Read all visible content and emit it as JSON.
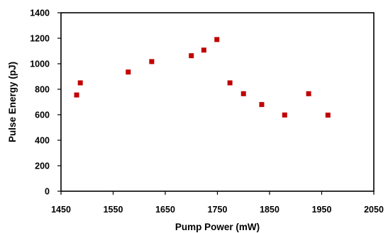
{
  "chart_data": {
    "type": "scatter",
    "title": "",
    "xlabel": "Pump Power (mW)",
    "ylabel": "Pulse Energy (pJ)",
    "xlim": [
      1450,
      2050
    ],
    "ylim": [
      0,
      1400
    ],
    "xticks": [
      1450,
      1550,
      1650,
      1750,
      1850,
      1950,
      2050
    ],
    "yticks": [
      0,
      200,
      400,
      600,
      800,
      1000,
      1200,
      1400
    ],
    "grid": false,
    "legend": "none",
    "marker": "square",
    "marker_color": "#C00000",
    "series": [
      {
        "points": [
          {
            "x": 1480,
            "y": 755
          },
          {
            "x": 1487,
            "y": 850
          },
          {
            "x": 1579,
            "y": 935
          },
          {
            "x": 1624,
            "y": 1017
          },
          {
            "x": 1700,
            "y": 1063
          },
          {
            "x": 1724,
            "y": 1107
          },
          {
            "x": 1749,
            "y": 1190
          },
          {
            "x": 1774,
            "y": 850
          },
          {
            "x": 1800,
            "y": 765
          },
          {
            "x": 1835,
            "y": 680
          },
          {
            "x": 1879,
            "y": 598
          },
          {
            "x": 1925,
            "y": 765
          },
          {
            "x": 1962,
            "y": 597
          }
        ]
      }
    ]
  }
}
